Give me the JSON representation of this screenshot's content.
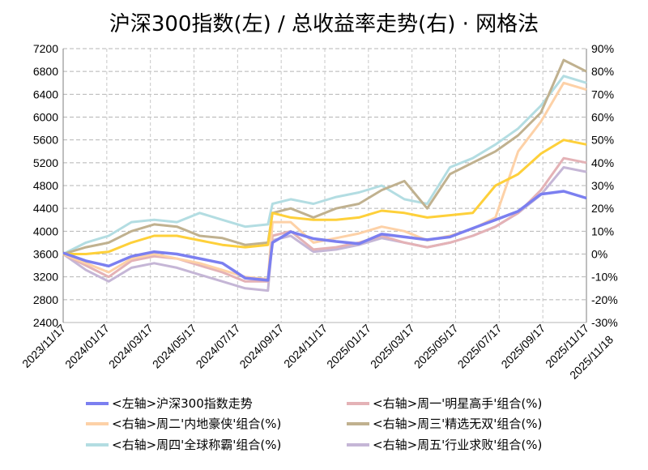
{
  "chart_data": {
    "type": "line",
    "title": "沪深300指数(左)  /  总收益率走势(右) · 网格法",
    "x_labels": [
      "2023/11/17",
      "2024/01/17",
      "2024/03/17",
      "2024/05/17",
      "2024/07/17",
      "2024/09/17",
      "2024/11/17",
      "2025/01/17",
      "2025/03/17",
      "2025/05/17",
      "2025/07/17",
      "2025/09/17",
      "2025/11/17"
    ],
    "last_date_label": "2025/11/18",
    "left_axis": {
      "ticks": [
        "7200",
        "6800",
        "6400",
        "6000",
        "5600",
        "5200",
        "4800",
        "4400",
        "4000",
        "3600",
        "3200",
        "2800",
        "2400"
      ],
      "ylim": [
        2400,
        7200
      ]
    },
    "right_axis": {
      "ticks": [
        "90%",
        "80%",
        "70%",
        "60%",
        "50%",
        "40%",
        "30%",
        "20%",
        "10%",
        "0%",
        "-10%",
        "-20%",
        "-30%"
      ],
      "ylim": [
        -30,
        90
      ]
    },
    "grid": true,
    "legend_position": "bottom",
    "series": [
      {
        "name": "<左轴>沪深300指数走势",
        "axis": "left",
        "color": "#7b7ff0",
        "points": [
          [
            0,
            3620
          ],
          [
            1,
            3480
          ],
          [
            2,
            3390
          ],
          [
            3,
            3560
          ],
          [
            4,
            3640
          ],
          [
            5,
            3600
          ],
          [
            6,
            3520
          ],
          [
            7,
            3440
          ],
          [
            8,
            3180
          ],
          [
            9,
            3140
          ],
          [
            9.2,
            3800
          ],
          [
            10,
            3990
          ],
          [
            11,
            3870
          ],
          [
            12,
            3820
          ],
          [
            13,
            3780
          ],
          [
            14,
            3950
          ],
          [
            15,
            3900
          ],
          [
            16,
            3850
          ],
          [
            17,
            3900
          ],
          [
            18,
            4050
          ],
          [
            19,
            4200
          ],
          [
            20,
            4350
          ],
          [
            21,
            4650
          ],
          [
            22,
            4700
          ],
          [
            23,
            4580
          ]
        ]
      },
      {
        "name": "<右轴>周一'明星高手'组合(%)",
        "axis": "right",
        "color": "#e4b2b6",
        "points": [
          [
            0,
            0
          ],
          [
            1,
            -5
          ],
          [
            2,
            -10
          ],
          [
            3,
            -3
          ],
          [
            4,
            -1
          ],
          [
            5,
            -2
          ],
          [
            6,
            -5
          ],
          [
            7,
            -8
          ],
          [
            8,
            -12
          ],
          [
            9,
            -12
          ],
          [
            9.2,
            8
          ],
          [
            10,
            10
          ],
          [
            11,
            2
          ],
          [
            12,
            3
          ],
          [
            13,
            5
          ],
          [
            14,
            8
          ],
          [
            15,
            5
          ],
          [
            16,
            3
          ],
          [
            17,
            5
          ],
          [
            18,
            8
          ],
          [
            19,
            12
          ],
          [
            20,
            18
          ],
          [
            21,
            28
          ],
          [
            22,
            42
          ],
          [
            23,
            40
          ]
        ]
      },
      {
        "name": "<右轴>周二'内地豪侠'组合(%)",
        "axis": "right",
        "color": "#fdd1a7",
        "points": [
          [
            0,
            0
          ],
          [
            1,
            -4
          ],
          [
            2,
            -8
          ],
          [
            3,
            -2
          ],
          [
            4,
            0
          ],
          [
            5,
            -2
          ],
          [
            6,
            -4
          ],
          [
            7,
            -7
          ],
          [
            8,
            -10
          ],
          [
            9,
            -11
          ],
          [
            9.2,
            14
          ],
          [
            10,
            14
          ],
          [
            11,
            5
          ],
          [
            12,
            7
          ],
          [
            13,
            9
          ],
          [
            14,
            12
          ],
          [
            15,
            10
          ],
          [
            16,
            6
          ],
          [
            17,
            8
          ],
          [
            18,
            11
          ],
          [
            19,
            16
          ],
          [
            20,
            45
          ],
          [
            21,
            58
          ],
          [
            22,
            75
          ],
          [
            23,
            72
          ]
        ]
      },
      {
        "name": "<右轴>周三'精选无双'组合(%)",
        "axis": "right",
        "color": "#c0b18f",
        "points": [
          [
            0,
            0
          ],
          [
            1,
            3
          ],
          [
            2,
            5
          ],
          [
            3,
            10
          ],
          [
            4,
            13
          ],
          [
            5,
            12
          ],
          [
            6,
            8
          ],
          [
            7,
            7
          ],
          [
            8,
            4
          ],
          [
            9,
            5
          ],
          [
            9.2,
            18
          ],
          [
            10,
            20
          ],
          [
            11,
            16
          ],
          [
            12,
            20
          ],
          [
            13,
            22
          ],
          [
            14,
            28
          ],
          [
            15,
            32
          ],
          [
            16,
            20
          ],
          [
            17,
            35
          ],
          [
            18,
            40
          ],
          [
            19,
            45
          ],
          [
            20,
            52
          ],
          [
            21,
            62
          ],
          [
            22,
            85
          ],
          [
            23,
            80
          ]
        ]
      },
      {
        "name": "<右轴>周四'全球称霸'组合(%)",
        "axis": "right",
        "color": "#b3dde2",
        "points": [
          [
            0,
            0
          ],
          [
            1,
            5
          ],
          [
            2,
            8
          ],
          [
            3,
            14
          ],
          [
            4,
            15
          ],
          [
            5,
            14
          ],
          [
            6,
            18
          ],
          [
            7,
            15
          ],
          [
            8,
            12
          ],
          [
            9,
            13
          ],
          [
            9.2,
            22
          ],
          [
            10,
            24
          ],
          [
            11,
            22
          ],
          [
            12,
            25
          ],
          [
            13,
            27
          ],
          [
            14,
            30
          ],
          [
            15,
            24
          ],
          [
            16,
            22
          ],
          [
            17,
            38
          ],
          [
            18,
            42
          ],
          [
            19,
            48
          ],
          [
            20,
            55
          ],
          [
            21,
            65
          ],
          [
            22,
            78
          ],
          [
            23,
            75
          ]
        ]
      },
      {
        "name": "<右轴>周五'行业求败'组合(%)",
        "axis": "right",
        "color": "#c5b6d6",
        "points": [
          [
            0,
            0
          ],
          [
            1,
            -7
          ],
          [
            2,
            -12
          ],
          [
            3,
            -6
          ],
          [
            4,
            -4
          ],
          [
            5,
            -6
          ],
          [
            6,
            -9
          ],
          [
            7,
            -12
          ],
          [
            8,
            -15
          ],
          [
            9,
            -16
          ],
          [
            9.2,
            6
          ],
          [
            10,
            8
          ],
          [
            11,
            1
          ],
          [
            12,
            2
          ],
          [
            13,
            4
          ],
          [
            14,
            7
          ],
          [
            15,
            5
          ],
          [
            16,
            3
          ],
          [
            17,
            5
          ],
          [
            18,
            8
          ],
          [
            19,
            12
          ],
          [
            20,
            18
          ],
          [
            21,
            26
          ],
          [
            22,
            38
          ],
          [
            23,
            36
          ]
        ]
      },
      {
        "name": "",
        "axis": "right",
        "color": "#fed03a",
        "points": [
          [
            0,
            0
          ],
          [
            1,
            0
          ],
          [
            2,
            1
          ],
          [
            3,
            5
          ],
          [
            4,
            8
          ],
          [
            5,
            8
          ],
          [
            6,
            6
          ],
          [
            7,
            4
          ],
          [
            8,
            3
          ],
          [
            9,
            4
          ],
          [
            9.2,
            18
          ],
          [
            10,
            16
          ],
          [
            11,
            15
          ],
          [
            12,
            15
          ],
          [
            13,
            16
          ],
          [
            14,
            19
          ],
          [
            15,
            18
          ],
          [
            16,
            16
          ],
          [
            17,
            17
          ],
          [
            18,
            18
          ],
          [
            19,
            30
          ],
          [
            20,
            35
          ],
          [
            21,
            44
          ],
          [
            22,
            50
          ],
          [
            23,
            48
          ]
        ]
      }
    ]
  }
}
